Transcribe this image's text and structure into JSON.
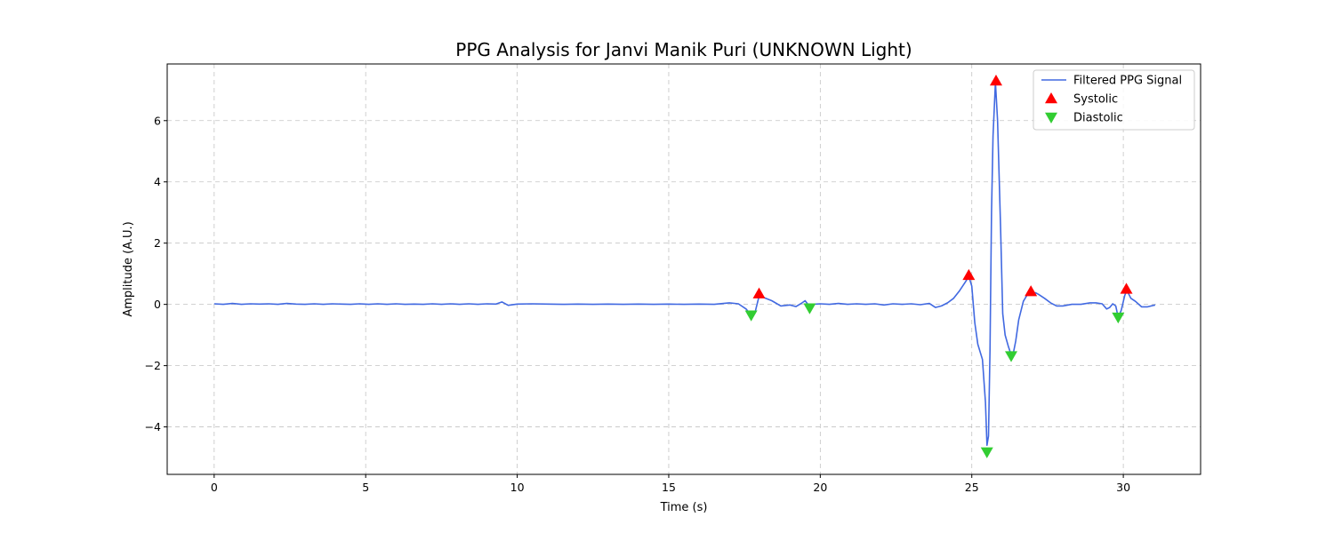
{
  "chart_data": {
    "type": "line",
    "title": "PPG Analysis for Janvi Manik Puri (UNKNOWN Light)",
    "xlabel": "Time (s)",
    "ylabel": "Amplitude (A.U.)",
    "xlim": [
      -1.55,
      32.55
    ],
    "ylim": [
      -5.55,
      7.85
    ],
    "xticks": [
      0,
      5,
      10,
      15,
      20,
      25,
      30
    ],
    "yticks": [
      -4,
      -2,
      0,
      2,
      4,
      6
    ],
    "grid": true,
    "legend_position": "top-right",
    "series": [
      {
        "name": "Filtered PPG Signal",
        "kind": "line",
        "color": "#4169e1",
        "points": [
          [
            0,
            0.02
          ],
          [
            0.3,
            0.0
          ],
          [
            0.6,
            0.03
          ],
          [
            0.9,
            0.0
          ],
          [
            1.2,
            0.02
          ],
          [
            1.5,
            0.01
          ],
          [
            1.8,
            0.02
          ],
          [
            2.1,
            0.0
          ],
          [
            2.4,
            0.03
          ],
          [
            2.7,
            0.01
          ],
          [
            3.0,
            0.0
          ],
          [
            3.3,
            0.02
          ],
          [
            3.6,
            0.0
          ],
          [
            3.9,
            0.02
          ],
          [
            4.2,
            0.01
          ],
          [
            4.5,
            0.0
          ],
          [
            4.8,
            0.02
          ],
          [
            5.1,
            0.0
          ],
          [
            5.4,
            0.02
          ],
          [
            5.7,
            0.0
          ],
          [
            6.0,
            0.02
          ],
          [
            6.3,
            0.0
          ],
          [
            6.6,
            0.01
          ],
          [
            6.9,
            0.0
          ],
          [
            7.2,
            0.02
          ],
          [
            7.5,
            0.0
          ],
          [
            7.8,
            0.02
          ],
          [
            8.1,
            0.0
          ],
          [
            8.4,
            0.02
          ],
          [
            8.7,
            0.0
          ],
          [
            9.0,
            0.02
          ],
          [
            9.3,
            0.01
          ],
          [
            9.5,
            0.08
          ],
          [
            9.7,
            -0.03
          ],
          [
            10.0,
            0.01
          ],
          [
            10.5,
            0.02
          ],
          [
            11.0,
            0.01
          ],
          [
            11.5,
            0.0
          ],
          [
            12.0,
            0.01
          ],
          [
            12.5,
            0.0
          ],
          [
            13.0,
            0.01
          ],
          [
            13.5,
            0.0
          ],
          [
            14.0,
            0.01
          ],
          [
            14.5,
            0.0
          ],
          [
            15.0,
            0.01
          ],
          [
            15.5,
            0.0
          ],
          [
            16.0,
            0.01
          ],
          [
            16.5,
            0.0
          ],
          [
            17.0,
            0.05
          ],
          [
            17.3,
            0.02
          ],
          [
            17.55,
            -0.15
          ],
          [
            17.72,
            -0.35
          ],
          [
            17.85,
            -0.25
          ],
          [
            17.95,
            0.15
          ],
          [
            18.0,
            0.32
          ],
          [
            18.15,
            0.22
          ],
          [
            18.4,
            0.12
          ],
          [
            18.7,
            -0.05
          ],
          [
            19.0,
            -0.02
          ],
          [
            19.2,
            -0.07
          ],
          [
            19.4,
            0.05
          ],
          [
            19.5,
            0.12
          ],
          [
            19.58,
            0.02
          ],
          [
            19.65,
            -0.1
          ],
          [
            19.75,
            0.0
          ],
          [
            20.0,
            0.02
          ],
          [
            20.3,
            0.0
          ],
          [
            20.6,
            0.03
          ],
          [
            20.9,
            0.0
          ],
          [
            21.2,
            0.02
          ],
          [
            21.5,
            0.0
          ],
          [
            21.8,
            0.02
          ],
          [
            22.1,
            -0.02
          ],
          [
            22.4,
            0.02
          ],
          [
            22.7,
            0.0
          ],
          [
            23.0,
            0.02
          ],
          [
            23.3,
            -0.01
          ],
          [
            23.6,
            0.03
          ],
          [
            23.8,
            -0.1
          ],
          [
            24.0,
            -0.05
          ],
          [
            24.2,
            0.05
          ],
          [
            24.4,
            0.2
          ],
          [
            24.6,
            0.45
          ],
          [
            24.8,
            0.75
          ],
          [
            24.9,
            0.92
          ],
          [
            25.0,
            0.6
          ],
          [
            25.1,
            -0.6
          ],
          [
            25.2,
            -1.3
          ],
          [
            25.35,
            -1.8
          ],
          [
            25.45,
            -3.2
          ],
          [
            25.5,
            -4.6
          ],
          [
            25.55,
            -4.3
          ],
          [
            25.6,
            -1.5
          ],
          [
            25.65,
            3.0
          ],
          [
            25.7,
            5.5
          ],
          [
            25.78,
            7.25
          ],
          [
            25.85,
            6.0
          ],
          [
            25.95,
            2.5
          ],
          [
            26.02,
            -0.3
          ],
          [
            26.1,
            -1.0
          ],
          [
            26.2,
            -1.35
          ],
          [
            26.3,
            -1.65
          ],
          [
            26.38,
            -1.55
          ],
          [
            26.45,
            -1.2
          ],
          [
            26.55,
            -0.5
          ],
          [
            26.7,
            0.1
          ],
          [
            26.85,
            0.35
          ],
          [
            27.0,
            0.38
          ],
          [
            27.1,
            0.38
          ],
          [
            27.2,
            0.33
          ],
          [
            27.4,
            0.2
          ],
          [
            27.6,
            0.05
          ],
          [
            27.8,
            -0.05
          ],
          [
            28.0,
            -0.05
          ],
          [
            28.3,
            0.0
          ],
          [
            28.6,
            0.0
          ],
          [
            28.9,
            0.05
          ],
          [
            29.1,
            0.05
          ],
          [
            29.3,
            0.02
          ],
          [
            29.45,
            -0.15
          ],
          [
            29.55,
            -0.1
          ],
          [
            29.65,
            0.02
          ],
          [
            29.75,
            -0.05
          ],
          [
            29.83,
            -0.42
          ],
          [
            29.93,
            -0.2
          ],
          [
            30.05,
            0.3
          ],
          [
            30.12,
            0.45
          ],
          [
            30.25,
            0.2
          ],
          [
            30.4,
            0.1
          ],
          [
            30.6,
            -0.08
          ],
          [
            30.8,
            -0.08
          ],
          [
            31.05,
            -0.02
          ]
        ]
      },
      {
        "name": "Systolic",
        "kind": "marker-up",
        "color": "#ff0000",
        "points": [
          [
            17.98,
            0.35
          ],
          [
            24.9,
            0.95
          ],
          [
            25.8,
            7.3
          ],
          [
            26.95,
            0.42
          ],
          [
            30.1,
            0.5
          ]
        ]
      },
      {
        "name": "Diastolic",
        "kind": "marker-down",
        "color": "#32cd32",
        "points": [
          [
            17.72,
            -0.35
          ],
          [
            19.65,
            -0.12
          ],
          [
            25.5,
            -4.82
          ],
          [
            26.3,
            -1.68
          ],
          [
            29.83,
            -0.42
          ]
        ]
      }
    ]
  }
}
